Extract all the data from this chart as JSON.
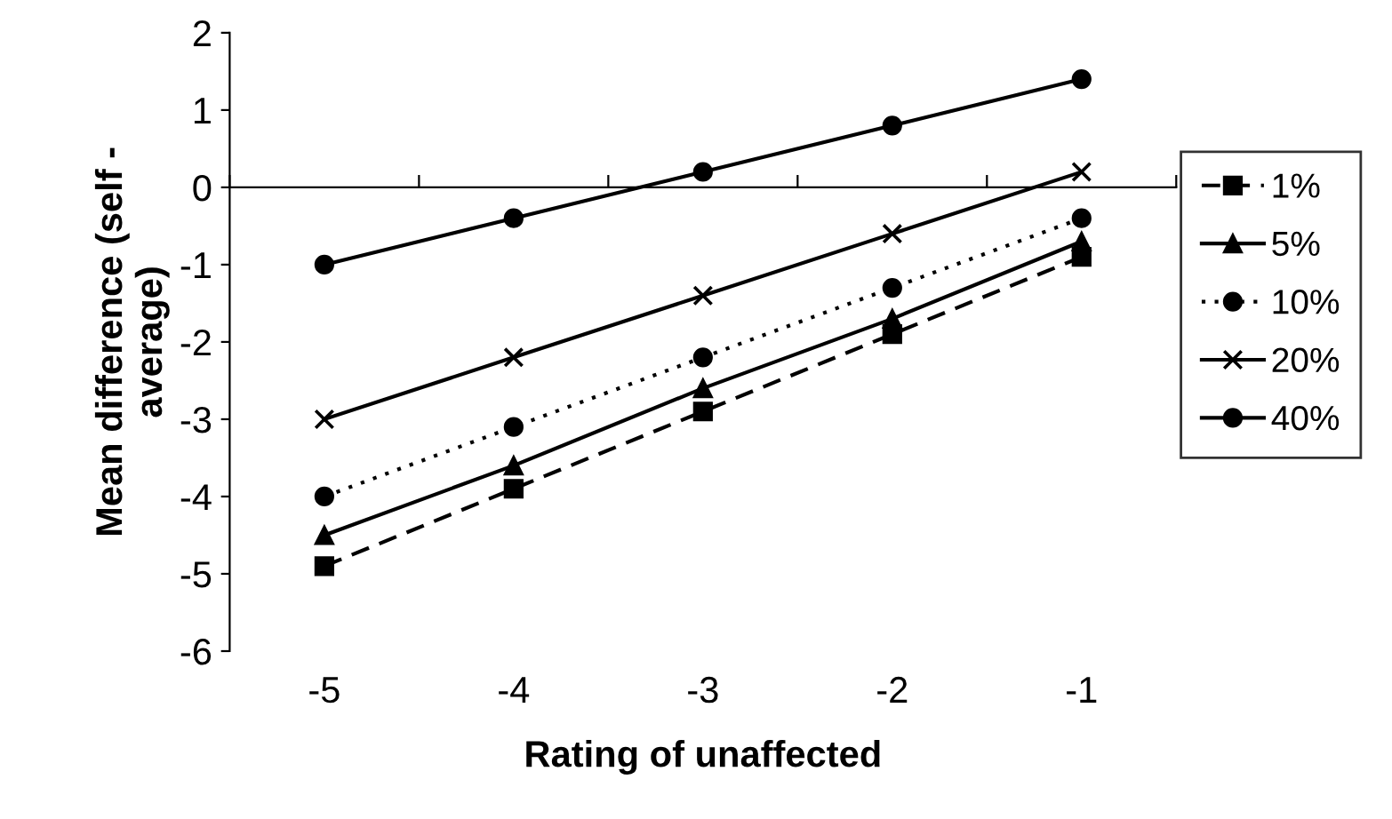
{
  "chart_data": {
    "type": "line",
    "xlabel": "Rating of unaffected",
    "ylabel": "Mean difference (self -\naverage)",
    "categories": [
      "-5",
      "-4",
      "-3",
      "-2",
      "-1"
    ],
    "ylim": [
      -6,
      2
    ],
    "yticks": [
      -6,
      -5,
      -4,
      -3,
      -2,
      -1,
      0,
      1,
      2
    ],
    "legend": "right",
    "series": [
      {
        "name": "1%",
        "color": "#000000",
        "marker": "square",
        "line_style": "dashed",
        "values": [
          -4.9,
          -3.9,
          -2.9,
          -1.9,
          -0.9
        ]
      },
      {
        "name": "5%",
        "color": "#000000",
        "marker": "triangle",
        "line_style": "solid",
        "values": [
          -4.5,
          -3.6,
          -2.6,
          -1.7,
          -0.7
        ]
      },
      {
        "name": "10%",
        "color": "#000000",
        "marker": "circle",
        "line_style": "dotted",
        "values": [
          -4.0,
          -3.1,
          -2.2,
          -1.3,
          -0.4
        ]
      },
      {
        "name": "20%",
        "color": "#000000",
        "marker": "cross",
        "line_style": "solid",
        "values": [
          -3.0,
          -2.2,
          -1.4,
          -0.6,
          0.2
        ]
      },
      {
        "name": "40%",
        "color": "#000000",
        "marker": "circle",
        "line_style": "solid",
        "values": [
          -1.0,
          -0.4,
          0.2,
          0.8,
          1.4
        ]
      }
    ]
  }
}
